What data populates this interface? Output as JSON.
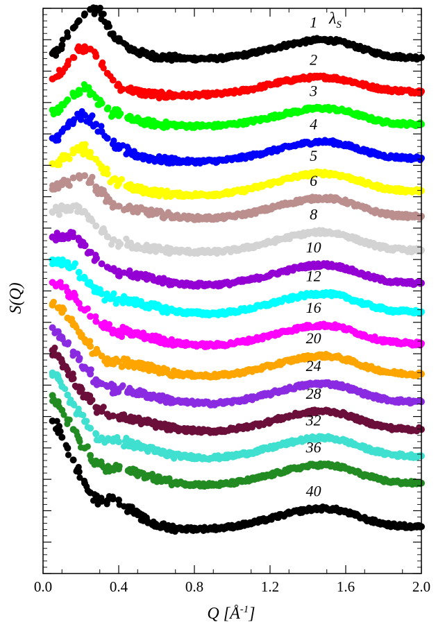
{
  "chart_data": {
    "type": "scatter",
    "title": "",
    "xlabel": "Q [Å⁻¹]",
    "xlabel_parts": {
      "base": "Q [",
      "unit": "Å",
      "sup": "-1",
      "close": "]"
    },
    "ylabel": "S(Q)",
    "legend_title": {
      "base": "λ",
      "sub": "S"
    },
    "xlim": [
      0.0,
      2.0
    ],
    "x_ticks": [
      "0.0",
      "0.4",
      "0.8",
      "1.2",
      "1.6",
      "2.0"
    ],
    "y_tick_labels_shown": false,
    "grid": false,
    "offset_note": "curves vertically offset; y values in arbitrary stacked units (0 = bottom frame, 1 = top frame)",
    "x": [
      0.05,
      0.08,
      0.1,
      0.13,
      0.16,
      0.19,
      0.22,
      0.25,
      0.28,
      0.31,
      0.34,
      0.37,
      0.4,
      0.45,
      0.5,
      0.55,
      0.6,
      0.65,
      0.7,
      0.75,
      0.8,
      0.85,
      0.9,
      0.95,
      1.0,
      1.05,
      1.1,
      1.15,
      1.2,
      1.25,
      1.3,
      1.35,
      1.4,
      1.45,
      1.5,
      1.55,
      1.6,
      1.65,
      1.7,
      1.75,
      1.8,
      1.85,
      1.9,
      1.95,
      2.0
    ],
    "series": [
      {
        "name": "1",
        "color": "#000000",
        "values": [
          0.92,
          0.925,
          0.935,
          0.95,
          0.965,
          0.978,
          0.99,
          0.998,
          1.0,
          0.99,
          0.972,
          0.955,
          0.942,
          0.93,
          0.923,
          0.918,
          0.915,
          0.913,
          0.912,
          0.911,
          0.911,
          0.911,
          0.911,
          0.912,
          0.914,
          0.917,
          0.92,
          0.924,
          0.928,
          0.932,
          0.936,
          0.939,
          0.942,
          0.944,
          0.944,
          0.942,
          0.938,
          0.933,
          0.927,
          0.922,
          0.918,
          0.915,
          0.914,
          0.913,
          0.913
        ]
      },
      {
        "name": "2",
        "color": "#ff0000",
        "values": [
          0.875,
          0.88,
          0.888,
          0.9,
          0.913,
          0.925,
          0.932,
          0.928,
          0.915,
          0.9,
          0.885,
          0.873,
          0.864,
          0.857,
          0.852,
          0.849,
          0.847,
          0.846,
          0.846,
          0.846,
          0.846,
          0.847,
          0.848,
          0.849,
          0.851,
          0.854,
          0.857,
          0.861,
          0.865,
          0.869,
          0.872,
          0.875,
          0.877,
          0.878,
          0.878,
          0.876,
          0.873,
          0.869,
          0.864,
          0.86,
          0.857,
          0.855,
          0.854,
          0.853,
          0.853
        ]
      },
      {
        "name": "3",
        "color": "#00ff00",
        "values": [
          0.82,
          0.824,
          0.83,
          0.838,
          0.848,
          0.855,
          0.857,
          0.852,
          0.842,
          0.832,
          0.822,
          0.815,
          0.81,
          0.805,
          0.801,
          0.798,
          0.795,
          0.794,
          0.793,
          0.792,
          0.792,
          0.792,
          0.792,
          0.793,
          0.795,
          0.797,
          0.8,
          0.803,
          0.807,
          0.811,
          0.815,
          0.818,
          0.821,
          0.823,
          0.823,
          0.821,
          0.818,
          0.813,
          0.808,
          0.803,
          0.799,
          0.797,
          0.796,
          0.795,
          0.795
        ]
      },
      {
        "name": "4",
        "color": "#0000ff",
        "values": [
          0.77,
          0.775,
          0.782,
          0.79,
          0.8,
          0.808,
          0.811,
          0.806,
          0.795,
          0.782,
          0.77,
          0.76,
          0.752,
          0.745,
          0.74,
          0.736,
          0.733,
          0.731,
          0.73,
          0.729,
          0.729,
          0.729,
          0.73,
          0.731,
          0.733,
          0.736,
          0.739,
          0.743,
          0.747,
          0.751,
          0.755,
          0.759,
          0.762,
          0.764,
          0.764,
          0.762,
          0.758,
          0.753,
          0.748,
          0.743,
          0.739,
          0.737,
          0.736,
          0.735,
          0.735
        ]
      },
      {
        "name": "5",
        "color": "#ffff00",
        "values": [
          0.725,
          0.728,
          0.733,
          0.738,
          0.744,
          0.749,
          0.751,
          0.745,
          0.733,
          0.72,
          0.707,
          0.697,
          0.69,
          0.684,
          0.68,
          0.677,
          0.674,
          0.672,
          0.671,
          0.67,
          0.67,
          0.67,
          0.671,
          0.672,
          0.674,
          0.677,
          0.681,
          0.685,
          0.69,
          0.694,
          0.699,
          0.703,
          0.706,
          0.708,
          0.708,
          0.706,
          0.702,
          0.697,
          0.691,
          0.686,
          0.682,
          0.679,
          0.678,
          0.677,
          0.677
        ]
      },
      {
        "name": "6",
        "color": "#bc8f8f",
        "values": [
          0.68,
          0.683,
          0.688,
          0.694,
          0.7,
          0.704,
          0.704,
          0.696,
          0.684,
          0.672,
          0.662,
          0.655,
          0.65,
          0.646,
          0.643,
          0.64,
          0.637,
          0.634,
          0.632,
          0.63,
          0.629,
          0.629,
          0.629,
          0.63,
          0.632,
          0.635,
          0.638,
          0.642,
          0.646,
          0.651,
          0.655,
          0.659,
          0.662,
          0.664,
          0.664,
          0.662,
          0.658,
          0.652,
          0.646,
          0.641,
          0.637,
          0.634,
          0.633,
          0.632,
          0.632
        ]
      },
      {
        "name": "8",
        "color": "#d3d3d3",
        "values": [
          0.64,
          0.642,
          0.645,
          0.648,
          0.65,
          0.648,
          0.64,
          0.628,
          0.615,
          0.604,
          0.596,
          0.59,
          0.586,
          0.582,
          0.579,
          0.576,
          0.574,
          0.572,
          0.571,
          0.57,
          0.569,
          0.569,
          0.569,
          0.57,
          0.572,
          0.575,
          0.578,
          0.582,
          0.586,
          0.591,
          0.595,
          0.599,
          0.602,
          0.604,
          0.604,
          0.602,
          0.598,
          0.592,
          0.586,
          0.581,
          0.577,
          0.574,
          0.573,
          0.572,
          0.572
        ]
      },
      {
        "name": "10",
        "color": "#9400d3",
        "values": [
          0.595,
          0.596,
          0.597,
          0.598,
          0.596,
          0.59,
          0.58,
          0.568,
          0.557,
          0.548,
          0.542,
          0.538,
          0.535,
          0.531,
          0.527,
          0.523,
          0.519,
          0.516,
          0.514,
          0.512,
          0.511,
          0.511,
          0.511,
          0.512,
          0.514,
          0.517,
          0.52,
          0.524,
          0.528,
          0.533,
          0.537,
          0.541,
          0.544,
          0.546,
          0.546,
          0.544,
          0.54,
          0.534,
          0.528,
          0.523,
          0.519,
          0.516,
          0.515,
          0.514,
          0.514
        ]
      },
      {
        "name": "12",
        "color": "#00ffff",
        "values": [
          0.555,
          0.555,
          0.554,
          0.55,
          0.543,
          0.533,
          0.522,
          0.511,
          0.502,
          0.495,
          0.49,
          0.487,
          0.485,
          0.482,
          0.479,
          0.475,
          0.471,
          0.467,
          0.464,
          0.462,
          0.461,
          0.46,
          0.46,
          0.461,
          0.463,
          0.466,
          0.469,
          0.473,
          0.477,
          0.482,
          0.486,
          0.49,
          0.493,
          0.495,
          0.495,
          0.493,
          0.489,
          0.483,
          0.477,
          0.472,
          0.468,
          0.465,
          0.464,
          0.463,
          0.463
        ]
      },
      {
        "name": "16",
        "color": "#ff00ff",
        "values": [
          0.515,
          0.512,
          0.507,
          0.499,
          0.49,
          0.478,
          0.466,
          0.455,
          0.446,
          0.439,
          0.434,
          0.431,
          0.429,
          0.426,
          0.423,
          0.419,
          0.415,
          0.411,
          0.408,
          0.406,
          0.405,
          0.404,
          0.404,
          0.405,
          0.407,
          0.41,
          0.413,
          0.417,
          0.421,
          0.426,
          0.43,
          0.434,
          0.437,
          0.439,
          0.439,
          0.437,
          0.433,
          0.427,
          0.421,
          0.416,
          0.412,
          0.409,
          0.408,
          0.407,
          0.407
        ]
      },
      {
        "name": "20",
        "color": "#ffa500",
        "values": [
          0.475,
          0.47,
          0.462,
          0.452,
          0.44,
          0.427,
          0.414,
          0.402,
          0.392,
          0.385,
          0.38,
          0.377,
          0.375,
          0.372,
          0.369,
          0.365,
          0.361,
          0.357,
          0.354,
          0.352,
          0.351,
          0.35,
          0.35,
          0.351,
          0.353,
          0.356,
          0.359,
          0.363,
          0.367,
          0.372,
          0.376,
          0.38,
          0.383,
          0.385,
          0.385,
          0.383,
          0.379,
          0.373,
          0.367,
          0.362,
          0.358,
          0.355,
          0.354,
          0.353,
          0.353
        ]
      },
      {
        "name": "24",
        "color": "#8a2be2",
        "values": [
          0.435,
          0.428,
          0.418,
          0.406,
          0.392,
          0.378,
          0.365,
          0.353,
          0.343,
          0.336,
          0.331,
          0.328,
          0.326,
          0.323,
          0.32,
          0.316,
          0.312,
          0.308,
          0.305,
          0.303,
          0.302,
          0.301,
          0.301,
          0.302,
          0.304,
          0.307,
          0.31,
          0.314,
          0.318,
          0.323,
          0.327,
          0.331,
          0.334,
          0.336,
          0.336,
          0.334,
          0.33,
          0.324,
          0.318,
          0.313,
          0.309,
          0.306,
          0.305,
          0.304,
          0.304
        ]
      },
      {
        "name": "28",
        "color": "#6b0f3a",
        "values": [
          0.395,
          0.386,
          0.374,
          0.36,
          0.345,
          0.33,
          0.316,
          0.304,
          0.294,
          0.287,
          0.282,
          0.279,
          0.277,
          0.274,
          0.271,
          0.267,
          0.263,
          0.259,
          0.256,
          0.254,
          0.253,
          0.252,
          0.252,
          0.253,
          0.255,
          0.258,
          0.261,
          0.265,
          0.269,
          0.274,
          0.278,
          0.282,
          0.285,
          0.287,
          0.287,
          0.285,
          0.281,
          0.275,
          0.269,
          0.264,
          0.26,
          0.257,
          0.256,
          0.255,
          0.255
        ]
      },
      {
        "name": "32",
        "color": "#40e0d0",
        "values": [
          0.355,
          0.345,
          0.331,
          0.316,
          0.3,
          0.284,
          0.269,
          0.257,
          0.247,
          0.24,
          0.236,
          0.234,
          0.233,
          0.23,
          0.226,
          0.221,
          0.216,
          0.212,
          0.209,
          0.207,
          0.206,
          0.205,
          0.205,
          0.206,
          0.208,
          0.211,
          0.214,
          0.218,
          0.222,
          0.227,
          0.231,
          0.235,
          0.238,
          0.24,
          0.24,
          0.238,
          0.234,
          0.228,
          0.222,
          0.217,
          0.213,
          0.21,
          0.209,
          0.208,
          0.208
        ]
      },
      {
        "name": "36",
        "color": "#228b22",
        "values": [
          0.315,
          0.304,
          0.289,
          0.272,
          0.255,
          0.238,
          0.222,
          0.209,
          0.199,
          0.192,
          0.188,
          0.186,
          0.185,
          0.182,
          0.178,
          0.173,
          0.168,
          0.164,
          0.161,
          0.159,
          0.158,
          0.157,
          0.157,
          0.158,
          0.16,
          0.163,
          0.166,
          0.17,
          0.174,
          0.179,
          0.183,
          0.187,
          0.19,
          0.192,
          0.192,
          0.19,
          0.186,
          0.18,
          0.174,
          0.169,
          0.165,
          0.162,
          0.161,
          0.16,
          0.16
        ]
      },
      {
        "name": "40",
        "color": "#000000",
        "values": [
          0.27,
          0.258,
          0.241,
          0.222,
          0.201,
          0.18,
          0.16,
          0.143,
          0.132,
          0.128,
          0.129,
          0.132,
          0.13,
          0.118,
          0.104,
          0.093,
          0.086,
          0.082,
          0.08,
          0.079,
          0.079,
          0.079,
          0.08,
          0.081,
          0.083,
          0.086,
          0.089,
          0.093,
          0.097,
          0.102,
          0.106,
          0.11,
          0.113,
          0.115,
          0.115,
          0.113,
          0.109,
          0.103,
          0.097,
          0.092,
          0.088,
          0.085,
          0.084,
          0.083,
          0.083
        ]
      }
    ]
  }
}
